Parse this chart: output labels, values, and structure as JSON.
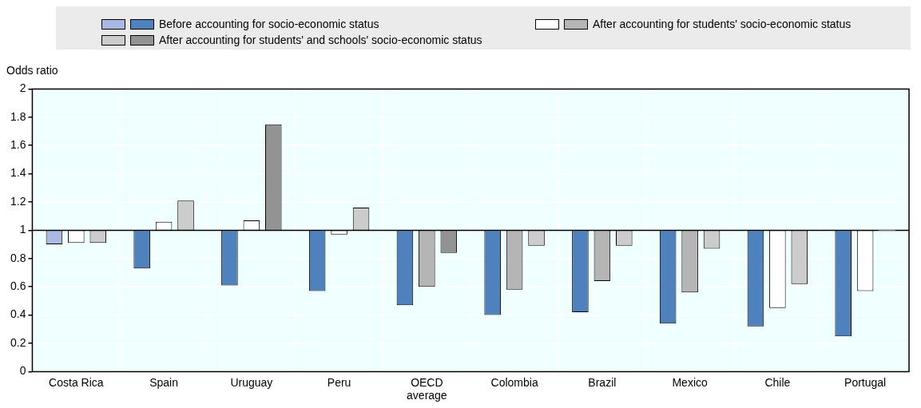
{
  "chart_data": {
    "type": "bar",
    "ylabel": "Odds ratio",
    "categories": [
      "Costa Rica",
      "Spain",
      "Uruguay",
      "Peru",
      "OECD average",
      "Colombia",
      "Brazil",
      "Mexico",
      "Chile",
      "Portugal"
    ],
    "ylim": [
      0,
      2
    ],
    "yticks": [
      0,
      0.2,
      0.4,
      0.6,
      0.8,
      1,
      1.2,
      1.4,
      1.6,
      1.8,
      2
    ],
    "grid": true,
    "legend": "top",
    "ref_lines": [
      {
        "axis": "y",
        "value": 1,
        "color": "#000000"
      }
    ],
    "series": [
      {
        "name": "Before accounting for socio-economic status",
        "base": [
          1,
          1,
          1,
          1,
          1,
          1,
          1,
          1,
          1,
          1
        ],
        "values": [
          -0.1,
          -0.27,
          -0.39,
          -0.43,
          -0.53,
          -0.6,
          -0.58,
          -0.66,
          -0.68,
          -0.75
        ],
        "colors": [
          "#a9b9e4",
          "#4f81bd",
          "#4f81bd",
          "#4f81bd",
          "#4f81bd",
          "#4f81bd",
          "#4f81bd",
          "#4f81bd",
          "#4f81bd",
          "#4f81bd"
        ]
      },
      {
        "name": "After accounting for students' socio-economic status",
        "base": [
          1,
          1,
          1,
          1,
          1,
          1,
          1,
          1,
          1,
          1
        ],
        "values": [
          -0.09,
          0.06,
          0.07,
          -0.03,
          -0.4,
          -0.42,
          -0.36,
          -0.44,
          -0.55,
          -0.43
        ],
        "colors": [
          "#ffffff",
          "#ffffff",
          "#ffffff",
          "#ffffff",
          "#b5b5b5",
          "#b5b5b5",
          "#b5b5b5",
          "#b5b5b5",
          "#ffffff",
          "#ffffff"
        ]
      },
      {
        "name": "After accounting for students' and schools' socio-economic status",
        "base": [
          1,
          1,
          1,
          1,
          1,
          1,
          1,
          1,
          1,
          1
        ],
        "values": [
          -0.09,
          0.21,
          0.75,
          0.16,
          -0.16,
          -0.11,
          -0.11,
          -0.13,
          -0.38,
          -0.01
        ],
        "colors": [
          "#cccccc",
          "#cccccc",
          "#939393",
          "#cccccc",
          "#939393",
          "#cccccc",
          "#cccccc",
          "#cccccc",
          "#cccccc",
          "#cccccc"
        ]
      }
    ]
  }
}
